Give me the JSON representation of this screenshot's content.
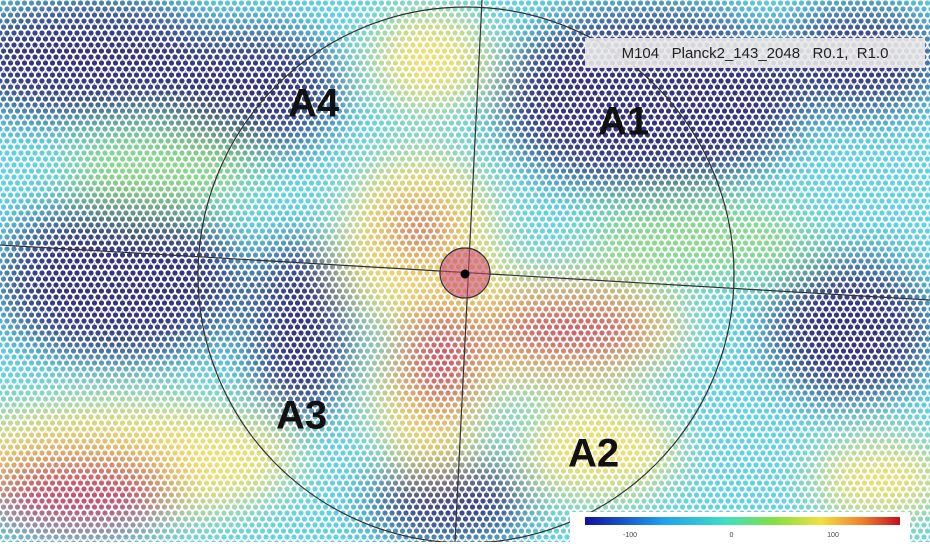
{
  "header": {
    "title": "M104   Planck2_143_2048   R0.1,  R1.0"
  },
  "regions": [
    {
      "label": "A1"
    },
    {
      "label": "A2"
    },
    {
      "label": "A3"
    },
    {
      "label": "A4"
    }
  ],
  "colorbar": {
    "ticks": [
      -100,
      0,
      100
    ]
  }
}
